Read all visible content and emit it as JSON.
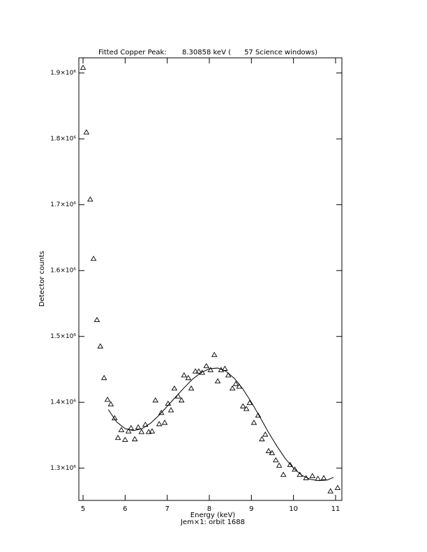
{
  "chart_data": {
    "type": "scatter",
    "title": "Fitted Copper Peak:       8.30858 keV (      57 Science windows)",
    "xlabel": "Energy (keV)",
    "subtitle": "Jem×1: orbit 1688",
    "ylabel": "Detector counts",
    "xlim": [
      4.9,
      11.15
    ],
    "ylim": [
      1251000,
      1923000
    ],
    "xticks": [
      5,
      6,
      7,
      8,
      9,
      10,
      11
    ],
    "yticks": [
      {
        "value": 1300000,
        "label": "1.3×10⁶"
      },
      {
        "value": 1400000,
        "label": "1.4×10⁶"
      },
      {
        "value": 1500000,
        "label": "1.5×10⁶"
      },
      {
        "value": 1600000,
        "label": "1.6×10⁶"
      },
      {
        "value": 1700000,
        "label": "1.7×10⁶"
      },
      {
        "value": 1800000,
        "label": "1.8×10⁶"
      },
      {
        "value": 1900000,
        "label": "1.9×10⁶"
      }
    ],
    "color": "#000000",
    "series": [
      {
        "marker": "triangle",
        "x": [
          5.0,
          5.08,
          5.17,
          5.25,
          5.33,
          5.41,
          5.5,
          5.58,
          5.66,
          5.75,
          5.83,
          5.91,
          6.0,
          6.08,
          6.14,
          6.23,
          6.31,
          6.39,
          6.48,
          6.56,
          6.64,
          6.72,
          6.81,
          6.86,
          6.94,
          7.02,
          7.09,
          7.17,
          7.26,
          7.34,
          7.4,
          7.5,
          7.57,
          7.67,
          7.75,
          7.83,
          7.93,
          8.03,
          8.12,
          8.2,
          8.28,
          8.37,
          8.45,
          8.55,
          8.63,
          8.71,
          8.8,
          8.88,
          8.96,
          9.06,
          9.16,
          9.25,
          9.33,
          9.41,
          9.49,
          9.58,
          9.66,
          9.76,
          9.92,
          10.03,
          10.15,
          10.3,
          10.45,
          10.58,
          10.72,
          10.88,
          11.05
        ],
        "values": [
          1908000,
          1810000,
          1708000,
          1618000,
          1525000,
          1485000,
          1437000,
          1404000,
          1397000,
          1376000,
          1346000,
          1358000,
          1343000,
          1356000,
          1361000,
          1344000,
          1362000,
          1355000,
          1366000,
          1355000,
          1356000,
          1403000,
          1367000,
          1384000,
          1369000,
          1398000,
          1388000,
          1421000,
          1409000,
          1403000,
          1441000,
          1437000,
          1421000,
          1447000,
          1447000,
          1445000,
          1455000,
          1449000,
          1472000,
          1432000,
          1449000,
          1451000,
          1441000,
          1421000,
          1428000,
          1424000,
          1394000,
          1390000,
          1399000,
          1369000,
          1380000,
          1344000,
          1351000,
          1326000,
          1323000,
          1312000,
          1304000,
          1290000,
          1305000,
          1298000,
          1290000,
          1285000,
          1288000,
          1284000,
          1285000,
          1265000,
          1270000
        ]
      },
      {
        "style": "line",
        "x": [
          5.6,
          5.8,
          6.0,
          6.2,
          6.4,
          6.6,
          6.8,
          7.0,
          7.2,
          7.4,
          7.6,
          7.8,
          8.0,
          8.2,
          8.4,
          8.6,
          8.8,
          9.0,
          9.2,
          9.4,
          9.6,
          9.8,
          10.0,
          10.2,
          10.4,
          10.6,
          10.8,
          10.95
        ],
        "values": [
          1389000,
          1370000,
          1360000,
          1357000,
          1360000,
          1368000,
          1380000,
          1394000,
          1408000,
          1422000,
          1435000,
          1445000,
          1451000,
          1452000,
          1447000,
          1436000,
          1420000,
          1400000,
          1378000,
          1355000,
          1334000,
          1315000,
          1300000,
          1289000,
          1283000,
          1281000,
          1282000,
          1286000
        ]
      }
    ]
  }
}
